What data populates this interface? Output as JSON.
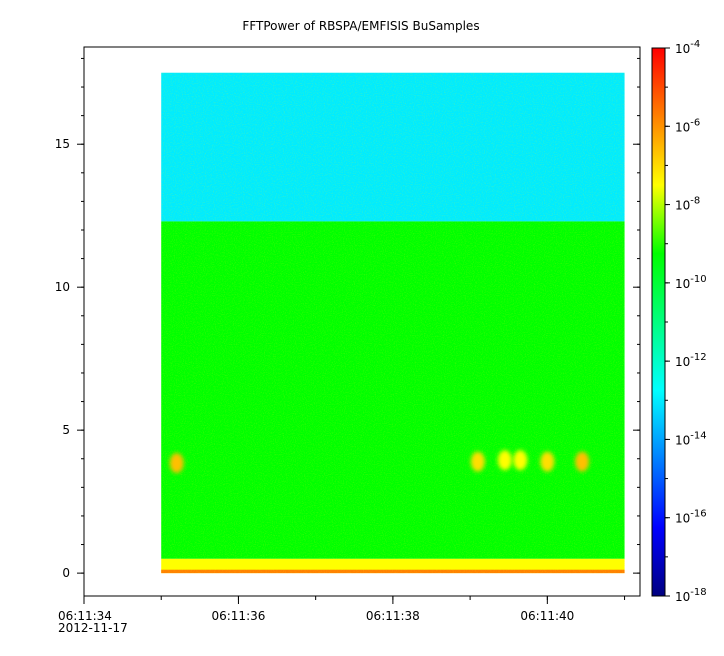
{
  "chart_data": {
    "type": "heatmap",
    "title": "FFTPower of RBSPA/EMFISIS  BuSamples",
    "xlabel": "",
    "ylabel": "",
    "x_axis": {
      "type": "time",
      "range": [
        "06:11:34",
        "06:11:41.2"
      ],
      "tick_labels": [
        "06:11:34",
        "06:11:36",
        "06:11:38",
        "06:11:40"
      ],
      "tick_seconds_after_start": [
        0,
        2,
        4,
        6
      ],
      "minor_tick_interval_seconds": 1,
      "date_label": "2012-11-17"
    },
    "y_axis": {
      "range": [
        -0.8,
        18.4
      ],
      "ticks": [
        0,
        5,
        10,
        15
      ]
    },
    "data_extent": {
      "x": [
        "06:11:35",
        "06:11:41"
      ],
      "y": [
        0,
        17.5
      ]
    },
    "colorbar": {
      "scale": "log",
      "range": [
        1e-18,
        0.0001
      ],
      "ticks": [
        {
          "base": "10",
          "exponent": "-4"
        },
        {
          "base": "10",
          "exponent": "-6"
        },
        {
          "base": "10",
          "exponent": "-8"
        },
        {
          "base": "10",
          "exponent": "-10"
        },
        {
          "base": "10",
          "exponent": "-12"
        },
        {
          "base": "10",
          "exponent": "-14"
        },
        {
          "base": "10",
          "exponent": "-16"
        },
        {
          "base": "10",
          "exponent": "-18"
        }
      ],
      "colormap": [
        "#000080",
        "#0000ff",
        "#00ffff",
        "#00ff00",
        "#ffff00",
        "#ff0000"
      ]
    },
    "features": [
      {
        "label": "high-frequency band",
        "y_range": [
          12.3,
          17.5
        ],
        "log_power": -12.3
      },
      {
        "label": "mid-frequency band",
        "y_range": [
          0.5,
          12.3
        ],
        "log_power": -10.0
      },
      {
        "label": "low-frequency rise",
        "y_range": [
          0.0,
          0.5
        ],
        "log_power": -8.0
      },
      {
        "label": "bottom edge",
        "y_range": [
          0.0,
          0.12
        ],
        "log_power": -6.0
      },
      {
        "label": "burst",
        "time": "06:11:35.2",
        "freq": 3.85,
        "log_power": -7.0
      },
      {
        "label": "burst",
        "time": "06:11:39.1",
        "freq": 3.9,
        "log_power": -7.5
      },
      {
        "label": "burst",
        "time": "06:11:39.45",
        "freq": 3.95,
        "log_power": -8.0
      },
      {
        "label": "burst",
        "time": "06:11:39.65",
        "freq": 3.95,
        "log_power": -8.0
      },
      {
        "label": "burst",
        "time": "06:11:40.0",
        "freq": 3.9,
        "log_power": -7.5
      },
      {
        "label": "burst",
        "time": "06:11:40.45",
        "freq": 3.9,
        "log_power": -7.0
      }
    ],
    "grid": false,
    "legend": "colorbar-right"
  },
  "colors": {
    "axis": "#000000",
    "background": "#ffffff"
  }
}
